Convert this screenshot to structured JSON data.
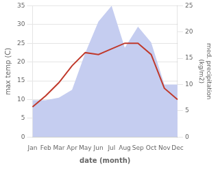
{
  "chart_data": {
    "type": "line",
    "categories": [
      "Jan",
      "Feb",
      "Mar",
      "Apr",
      "May",
      "Jun",
      "Jul",
      "Aug",
      "Sep",
      "Oct",
      "Nov",
      "Dec"
    ],
    "series": [
      {
        "type": "area",
        "color": "#c5cdf0",
        "axis": "y2",
        "values": [
          7.0,
          7.0,
          7.5,
          9.0,
          16.0,
          22.0,
          25.0,
          17.0,
          21.0,
          18.0,
          10.0,
          10.0
        ]
      },
      {
        "type": "line",
        "color": "#c0392b",
        "values": [
          8.0,
          11.0,
          14.5,
          19.0,
          22.5,
          22.0,
          23.5,
          25.0,
          25.0,
          22.0,
          13.0,
          10.0
        ]
      }
    ],
    "xlabel": "date (month)",
    "ylabel": "max temp (C)",
    "y2label": "med. precipitation\n(kg/m2)",
    "ylim": [
      0,
      35
    ],
    "yticks": [
      0,
      5,
      10,
      15,
      20,
      25,
      30,
      35
    ],
    "y2lim": [
      0,
      25
    ],
    "y2ticks": [
      0,
      5,
      10,
      15,
      20,
      25
    ],
    "grid": true
  }
}
